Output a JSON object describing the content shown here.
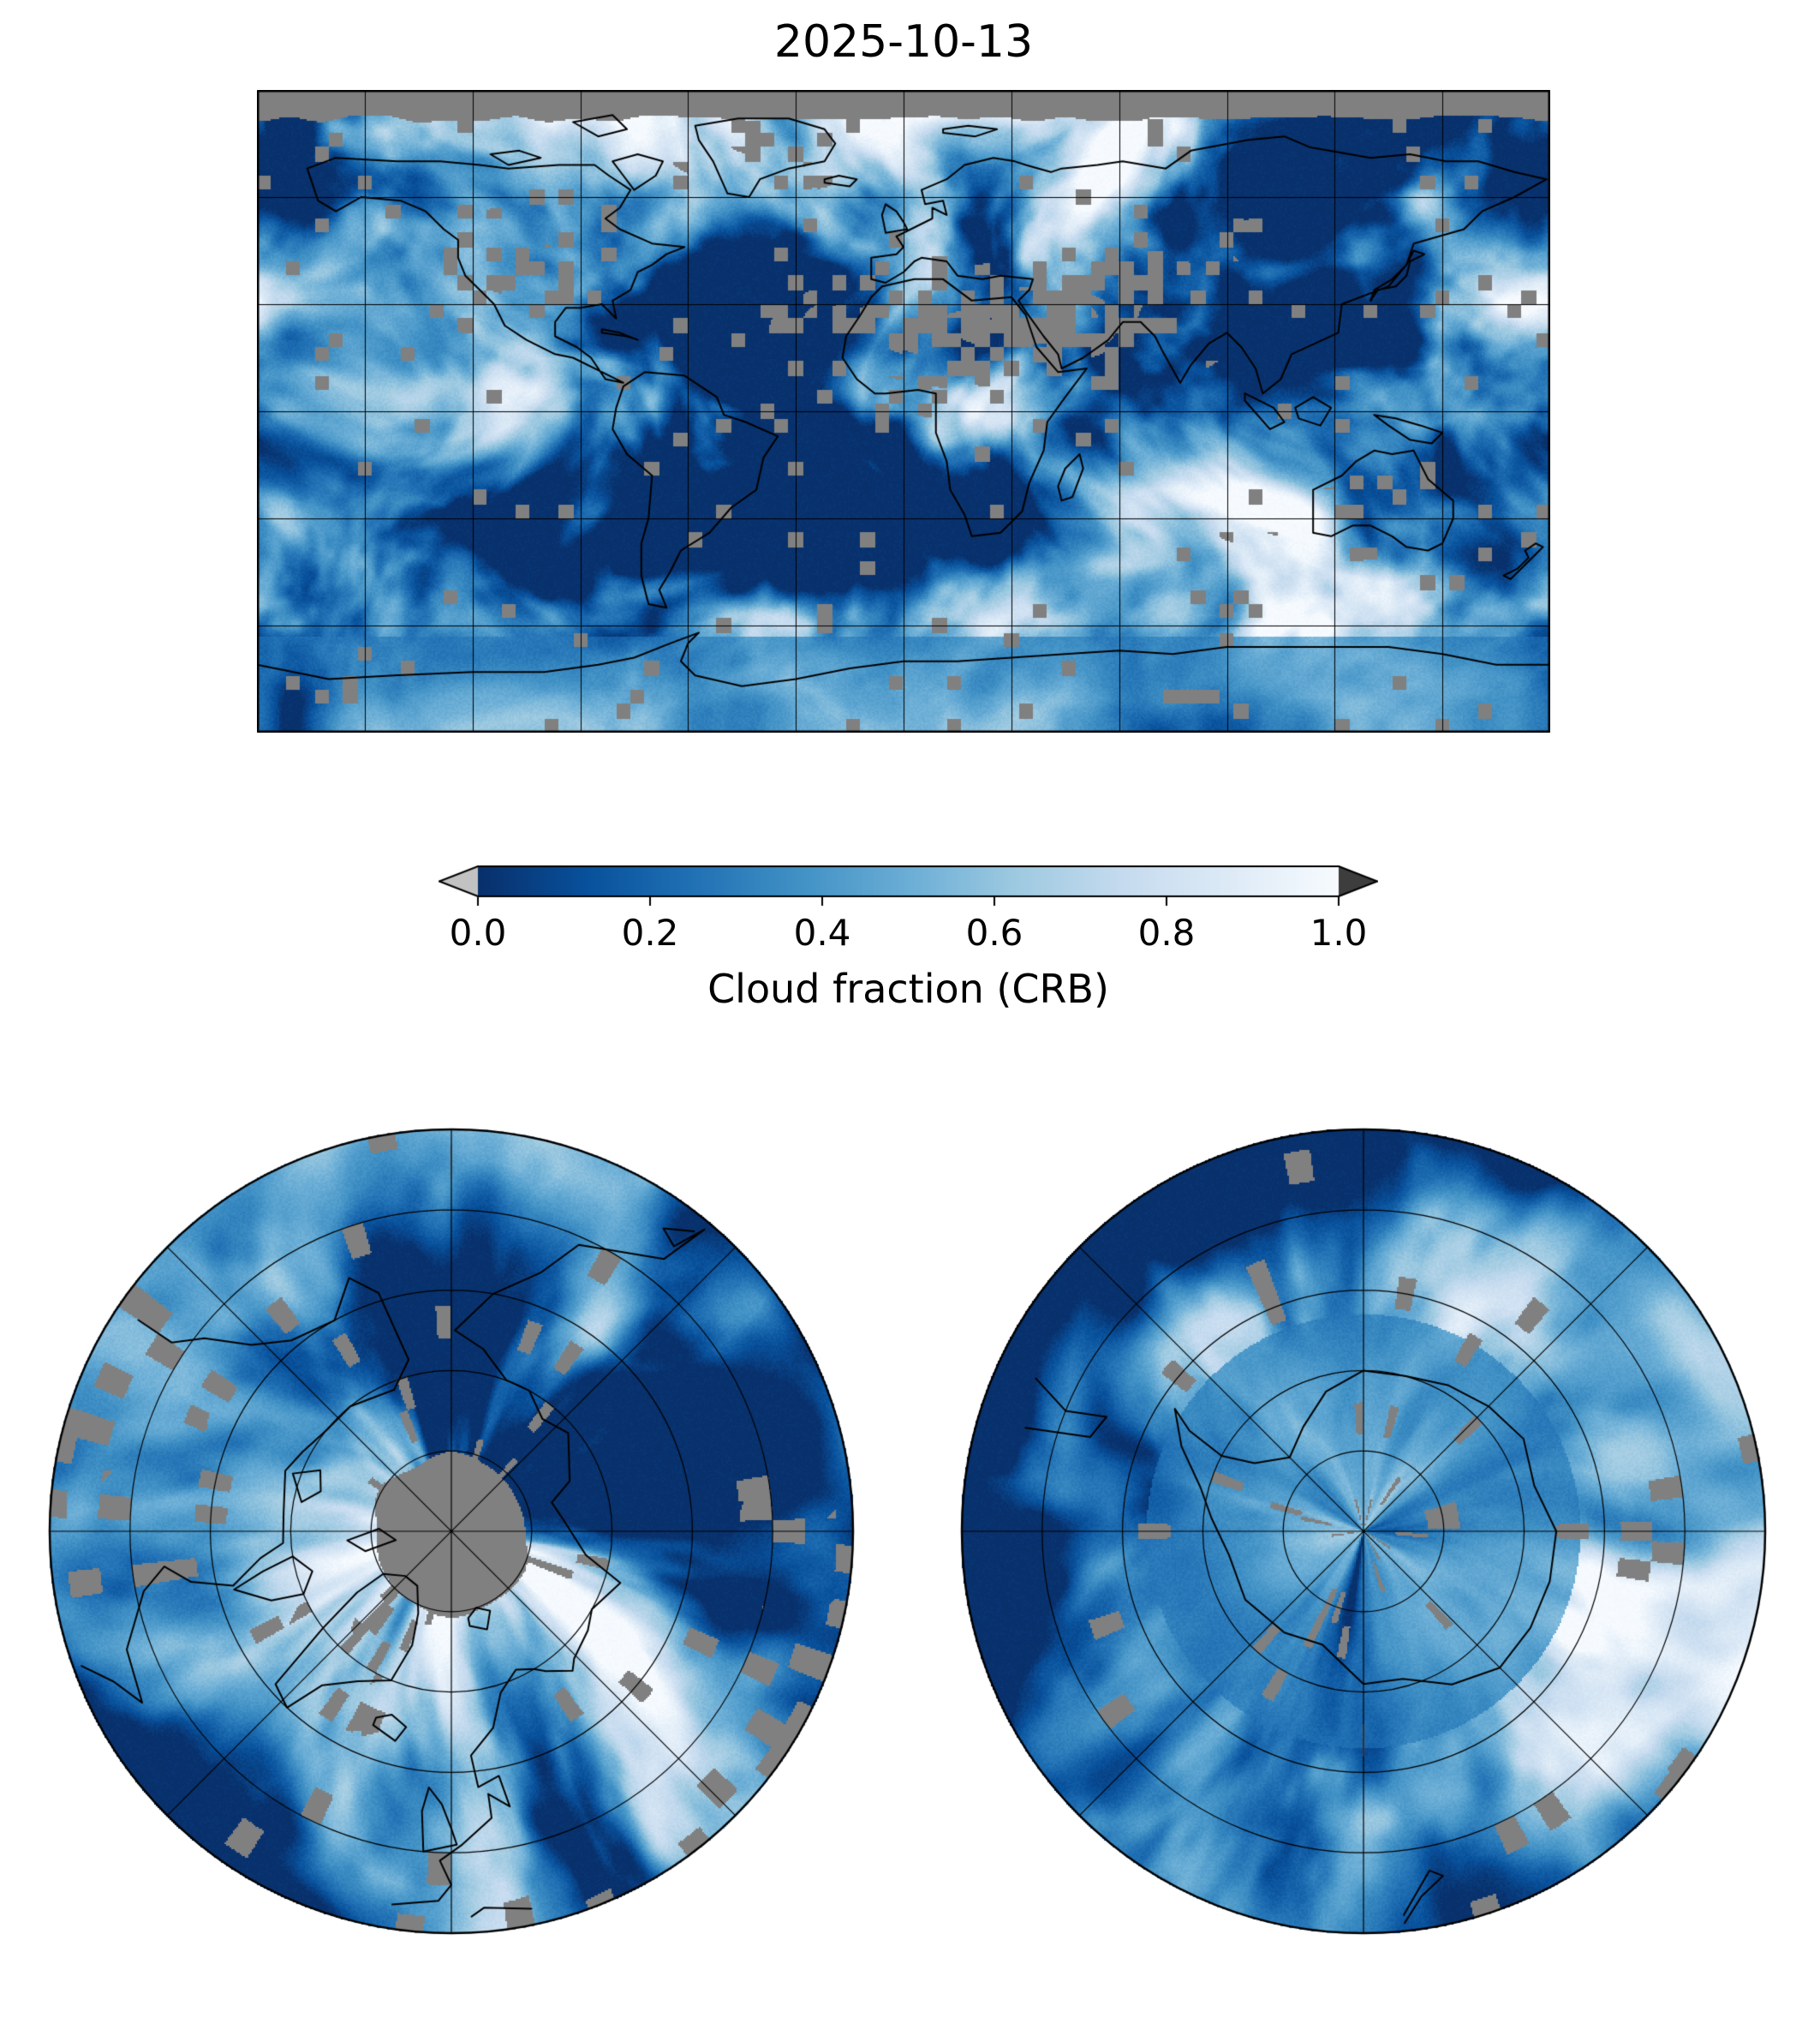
{
  "figure": {
    "title": "2025-10-13"
  },
  "colorbar": {
    "label": "Cloud fraction (CRB)",
    "ticks": [
      "0.0",
      "0.2",
      "0.4",
      "0.6",
      "0.8",
      "1.0"
    ],
    "under_arrow_color": "#c2c2c2",
    "over_arrow_color": "#3d3d3d",
    "outline_color": "#000000",
    "gradient_stops": [
      "#08306b",
      "#08519c",
      "#2171b5",
      "#4292c6",
      "#6baed6",
      "#9ecae1",
      "#c6dbef",
      "#deebf7",
      "#f7fbff"
    ]
  },
  "map": {
    "missing_color": "#808080",
    "coastline_color": "#000000",
    "gridline_color": "#000000",
    "background_color": "#ffffff"
  },
  "chart_data": {
    "type": "heatmap",
    "title": "2025-10-13",
    "variable": "Cloud fraction (CRB)",
    "value_range": [
      0,
      1
    ],
    "colorbar_ticks": [
      0.0,
      0.2,
      0.4,
      0.6,
      0.8,
      1.0
    ],
    "colormap": "Blues reversed: 0.0 = dark blue (#08306b), 1.0 = white (#f7fbff); gray (#808080) = missing data",
    "colorbar_extends": "both (gray under-arrow on left, dark gray over-arrow on right)",
    "panels": [
      {
        "name": "global-map",
        "projection": "equirectangular",
        "extent": "90S-90N, 180W-180E",
        "graticule_deg": 30,
        "features": [
          "black coastlines",
          "solid gray missing-data band along the top (polar night, ~82N-90N)",
          "blocky gray missing-data patches over N. Africa / Arabia / central Asia / W. North America / Australia",
          "bright white storm-track cloud bands in mid-latitudes",
          "dark blue clear-sky subtropical ocean basins"
        ]
      },
      {
        "name": "north-polar-map",
        "projection": "polar azimuthal centered on North Pole (~40N to 90N)",
        "features": [
          "black coastlines (Greenland, Arctic Canada, Scandinavia, Siberia, Iceland, UK)",
          "irregular gray missing-data cap centered on the pole",
          "latitude circles every 10 degrees and meridians every 45 degrees",
          "scattered blocky gray missing-data patches"
        ]
      },
      {
        "name": "south-polar-map",
        "projection": "polar azimuthal centered on South Pole (~40S to 90S)",
        "features": [
          "Antarctica coastline with peninsula",
          "tip of South America at upper left",
          "latitude circles every 10 degrees and meridians every 45 degrees",
          "cloud field over Antarctic interior (no central gray cap)"
        ]
      }
    ]
  }
}
